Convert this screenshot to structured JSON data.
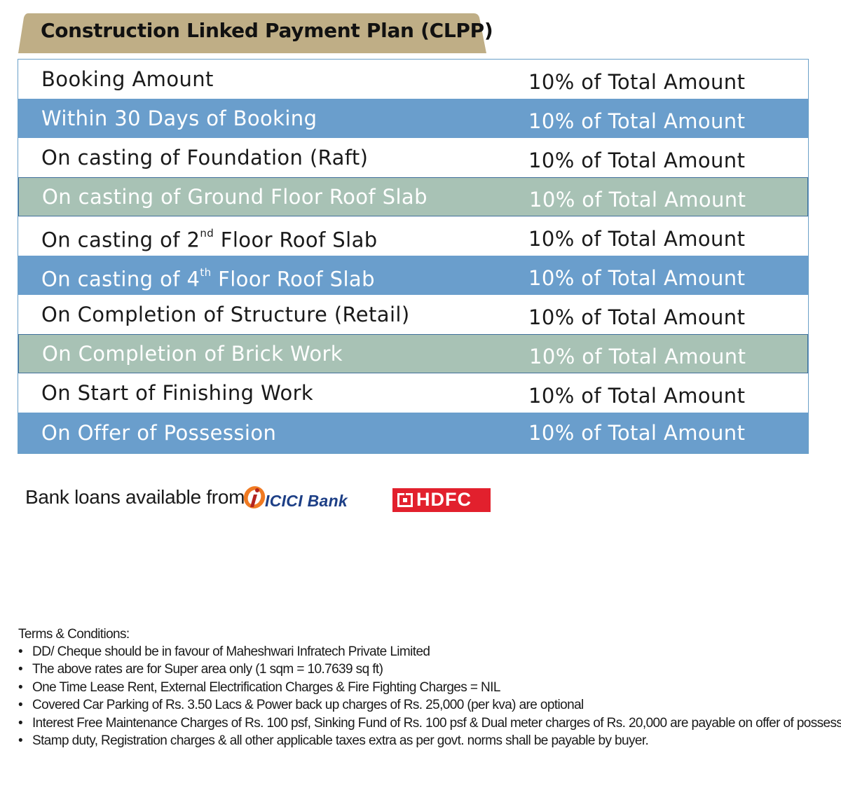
{
  "title": "Construction Linked Payment Plan (CLPP)",
  "colors": {
    "title_tab": "#bfae86",
    "row_blue": "#6a9ecc",
    "row_sage": "#a8c2b5",
    "icici_orange": "#f07a22",
    "icici_blue": "#1d3f86",
    "hdfc_red": "#e2202d"
  },
  "payment_plan": [
    {
      "stage": "Booking Amount",
      "amount": "10% of Total Amount"
    },
    {
      "stage": "Within 30 Days of Booking",
      "amount": "10% of Total Amount"
    },
    {
      "stage": "On casting of Foundation (Raft)",
      "amount": "10% of Total Amount"
    },
    {
      "stage": "On casting of Ground Floor Roof Slab",
      "amount": "10% of Total Amount"
    },
    {
      "stage_pre": "On casting of 2",
      "stage_sup": "nd",
      "stage_post": " Floor Roof Slab",
      "amount": "10% of Total Amount"
    },
    {
      "stage_pre": "On casting of 4",
      "stage_sup": "th",
      "stage_post": " Floor Roof Slab",
      "amount": "10% of Total Amount"
    },
    {
      "stage": "On Completion of Structure (Retail)",
      "amount": "10% of Total Amount"
    },
    {
      "stage": "On Completion of Brick Work",
      "amount": "10% of Total Amount"
    },
    {
      "stage": "On Start of Finishing Work",
      "amount": "10% of Total Amount"
    },
    {
      "stage": "On Offer of Possession",
      "amount": "10% of Total Amount"
    }
  ],
  "bank_loans": {
    "label": "Bank loans available from:",
    "banks": [
      {
        "name": "ICICI Bank",
        "icon": "icici-logo-mark"
      },
      {
        "name": "HDFC",
        "icon": "hdfc-logo-mark"
      }
    ]
  },
  "terms": {
    "heading": "Terms & Conditions:",
    "bullet": "•",
    "items": [
      "DD/ Cheque should be in favour of Maheshwari Infratech Private Limited",
      "The above rates are for Super area only (1 sqm = 10.7639 sq ft)",
      "One Time Lease Rent, External Electrification Charges & Fire Fighting Charges = NIL",
      "Covered Car Parking of Rs. 3.50 Lacs & Power back up charges of Rs. 25,000 (per kva) are optional",
      "Interest Free Maintenance Charges of Rs. 100 psf, Sinking Fund of Rs. 100 psf & Dual meter charges of Rs. 20,000 are payable on offer of possession.",
      "Stamp duty, Registration charges & all other applicable taxes extra as per govt. norms shall be payable by buyer."
    ]
  }
}
